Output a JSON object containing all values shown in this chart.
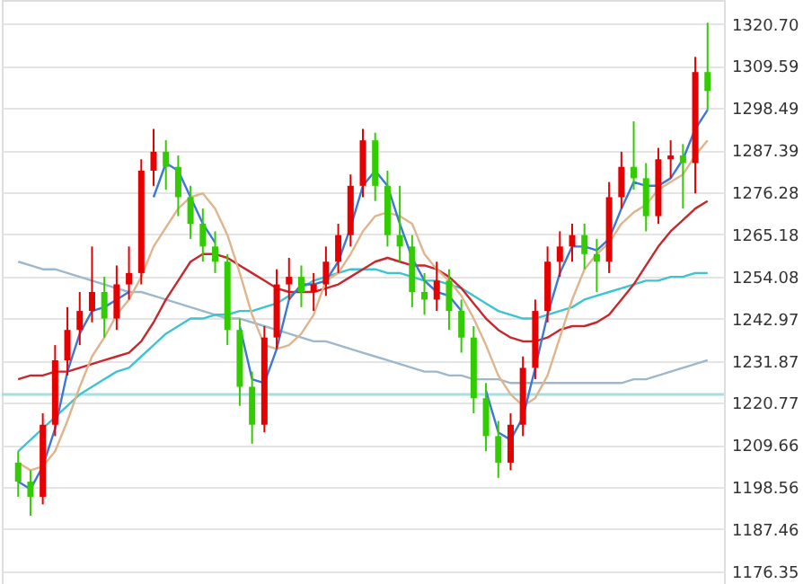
{
  "chart_data": {
    "type": "candlestick",
    "categories": [
      null,
      null,
      null,
      null,
      null,
      null,
      null,
      null,
      null,
      null,
      null,
      null,
      null,
      null,
      null,
      null,
      null,
      null,
      null,
      null,
      null,
      null,
      null,
      null,
      null,
      null,
      null,
      null,
      null,
      null,
      null,
      null,
      null,
      null,
      null,
      null,
      null,
      null,
      null,
      null,
      null,
      null,
      null,
      null,
      null,
      null,
      null,
      null,
      null,
      null,
      null,
      null,
      null,
      null,
      null,
      null,
      null
    ],
    "series": [
      {
        "type": "line",
        "color": "#9db8cc",
        "values": [
          1258,
          1257,
          1256,
          1256,
          1255,
          1254,
          1253,
          1252,
          1251,
          1250,
          1250,
          1249,
          1248,
          1247,
          1246,
          1245,
          1244,
          1243,
          1243,
          1242,
          1241,
          1240,
          1239,
          1238,
          1237,
          1237,
          1236,
          1235,
          1234,
          1233,
          1232,
          1231,
          1230,
          1229,
          1229,
          1228,
          1228,
          1227,
          1227,
          1227,
          1226,
          1226,
          1226,
          1226,
          1226,
          1226,
          1226,
          1226,
          1226,
          1226,
          1227,
          1227,
          1228,
          1229,
          1230,
          1231,
          1232
        ]
      },
      {
        "type": "line",
        "color": "#3cc4d0",
        "values": [
          1208,
          1211,
          1214,
          1217,
          1220,
          1223,
          1225,
          1227,
          1229,
          1230,
          1233,
          1236,
          1239,
          1241,
          1243,
          1243,
          1244,
          1244,
          1245,
          1245,
          1246,
          1247,
          1249,
          1251,
          1253,
          1254,
          1255,
          1256,
          1256,
          1256,
          1255,
          1255,
          1254,
          1253,
          1253,
          1252,
          1251,
          1249,
          1247,
          1245,
          1244,
          1243,
          1243,
          1244,
          1245,
          1246,
          1248,
          1249,
          1250,
          1251,
          1252,
          1253,
          1253,
          1254,
          1254,
          1255,
          1255
        ]
      },
      {
        "type": "line",
        "color": "#c8282d",
        "values": [
          1227,
          1228,
          1228,
          1229,
          1229,
          1230,
          1231,
          1232,
          1233,
          1234,
          1237,
          1242,
          1248,
          1253,
          1258,
          1260,
          1260,
          1259,
          1257,
          1255,
          1253,
          1251,
          1250,
          1250,
          1250,
          1251,
          1252,
          1254,
          1256,
          1258,
          1259,
          1258,
          1257,
          1257,
          1256,
          1254,
          1251,
          1247,
          1243,
          1240,
          1238,
          1237,
          1237,
          1238,
          1240,
          1241,
          1241,
          1242,
          1244,
          1248,
          1252,
          1257,
          1262,
          1266,
          1269,
          1272,
          1274
        ]
      },
      {
        "type": "line",
        "color": "#e0b48c",
        "values": [
          1205,
          1203,
          1204,
          1208,
          1216,
          1225,
          1233,
          1238,
          1244,
          1248,
          1254,
          1262,
          1267,
          1272,
          1275,
          1276,
          1272,
          1265,
          1255,
          1244,
          1236,
          1235,
          1236,
          1239,
          1244,
          1253,
          1255,
          1260,
          1266,
          1270,
          1271,
          1270,
          1268,
          1260,
          1256,
          1253,
          1249,
          1243,
          1236,
          1228,
          1223,
          1220,
          1222,
          1228,
          1238,
          1248,
          1256,
          1260,
          1263,
          1268,
          1271,
          1273,
          1277,
          1279,
          1281,
          1286,
          1290
        ]
      },
      {
        "type": "line",
        "color": "#3c78d8",
        "values": [
          1200,
          1198,
          1204,
          1214,
          1229,
          1239,
          1245,
          1246,
          1248,
          1250,
          null,
          1275,
          1284,
          1282,
          1275,
          1268,
          1263,
          null,
          1241,
          1227,
          1226,
          1235,
          1248,
          1252,
          1252,
          1253,
          1258,
          1267,
          1278,
          1282,
          1278,
          1268,
          1259,
          1253,
          1250,
          1249,
          1245,
          null,
          1224,
          1213,
          1211,
          1217,
          1230,
          1244,
          1255,
          1262,
          1262,
          1261,
          1264,
          1272,
          1279,
          1278,
          1278,
          1280,
          1285,
          1293,
          1298
        ]
      },
      {
        "ohlc": [
          [
            1205,
            1208,
            1196,
            1200
          ],
          [
            1200,
            1203,
            1191,
            1196
          ],
          [
            1196,
            1218,
            1194,
            1215
          ],
          [
            1215,
            1236,
            1212,
            1232
          ],
          [
            1232,
            1246,
            1228,
            1240
          ],
          [
            1240,
            1250,
            1236,
            1245
          ],
          [
            1245,
            1262,
            1242,
            1250
          ],
          [
            1250,
            1254,
            1238,
            1243
          ],
          [
            1243,
            1257,
            1240,
            1252
          ],
          [
            1252,
            1262,
            1248,
            1255
          ],
          [
            1255,
            1285,
            1252,
            1282
          ],
          [
            1282,
            1293,
            1278,
            1287
          ],
          [
            1287,
            1290,
            1277,
            1283
          ],
          [
            1283,
            1286,
            1270,
            1275
          ],
          [
            1275,
            1278,
            1264,
            1268
          ],
          [
            1268,
            1272,
            1258,
            1262
          ],
          [
            1262,
            1266,
            1255,
            1258
          ],
          [
            1258,
            1260,
            1236,
            1240
          ],
          [
            1240,
            1243,
            1220,
            1225
          ],
          [
            1225,
            1229,
            1210,
            1215
          ],
          [
            1215,
            1241,
            1213,
            1238
          ],
          [
            1238,
            1256,
            1235,
            1252
          ],
          [
            1252,
            1259,
            1248,
            1254
          ],
          [
            1254,
            1257,
            1246,
            1250
          ],
          [
            1250,
            1255,
            1245,
            1252
          ],
          [
            1252,
            1262,
            1249,
            1258
          ],
          [
            1258,
            1268,
            1255,
            1265
          ],
          [
            1265,
            1281,
            1262,
            1278
          ],
          [
            1278,
            1293,
            1275,
            1290
          ],
          [
            1290,
            1292,
            1274,
            1278
          ],
          [
            1278,
            1282,
            1262,
            1265
          ],
          [
            1265,
            1278,
            1258,
            1262
          ],
          [
            1262,
            1265,
            1246,
            1250
          ],
          [
            1250,
            1255,
            1244,
            1248
          ],
          [
            1248,
            1258,
            1245,
            1253
          ],
          [
            1253,
            1256,
            1240,
            1245
          ],
          [
            1245,
            1248,
            1234,
            1238
          ],
          [
            1238,
            1241,
            1218,
            1222
          ],
          [
            1222,
            1226,
            1208,
            1212
          ],
          [
            1212,
            1216,
            1201,
            1205
          ],
          [
            1205,
            1218,
            1203,
            1215
          ],
          [
            1215,
            1233,
            1212,
            1230
          ],
          [
            1230,
            1248,
            1227,
            1245
          ],
          [
            1245,
            1262,
            1242,
            1258
          ],
          [
            1258,
            1266,
            1254,
            1262
          ],
          [
            1262,
            1268,
            1258,
            1265
          ],
          [
            1265,
            1268,
            1256,
            1260
          ],
          [
            1260,
            1264,
            1250,
            1258
          ],
          [
            1258,
            1279,
            1255,
            1275
          ],
          [
            1275,
            1287,
            1272,
            1283
          ],
          [
            1283,
            1295,
            1277,
            1280
          ],
          [
            1280,
            1284,
            1266,
            1270
          ],
          [
            1270,
            1288,
            1268,
            1285
          ],
          [
            1285,
            1290,
            1280,
            1286
          ],
          [
            1286,
            1289,
            1272,
            1284
          ],
          [
            1284,
            1312,
            1276,
            1308
          ],
          [
            1308,
            1321,
            1298,
            1303
          ]
        ],
        "colors": [
          "#33cc00",
          "#33cc00",
          "#e60000",
          "#e60000",
          "#e60000",
          "#e60000",
          "#e60000",
          "#33cc00",
          "#e60000",
          "#e60000",
          "#e60000",
          "#e60000",
          "#33cc00",
          "#33cc00",
          "#33cc00",
          "#33cc00",
          "#33cc00",
          "#33cc00",
          "#33cc00",
          "#33cc00",
          "#e60000",
          "#e60000",
          "#e60000",
          "#33cc00",
          "#e60000",
          "#e60000",
          "#e60000",
          "#e60000",
          "#e60000",
          "#33cc00",
          "#33cc00",
          "#33cc00",
          "#33cc00",
          "#33cc00",
          "#e60000",
          "#33cc00",
          "#33cc00",
          "#33cc00",
          "#33cc00",
          "#33cc00",
          "#e60000",
          "#e60000",
          "#e60000",
          "#e60000",
          "#e60000",
          "#e60000",
          "#33cc00",
          "#33cc00",
          "#e60000",
          "#e60000",
          "#33cc00",
          "#33cc00",
          "#e60000",
          "#e60000",
          "#33cc00",
          "#e60000",
          "#33cc00"
        ]
      }
    ],
    "ylim": [
      1173,
      1327
    ],
    "yticks": [
      {
        "value": 1176.35,
        "label": "1176.35"
      },
      {
        "value": 1187.46,
        "label": "1187.46"
      },
      {
        "value": 1198.56,
        "label": "1198.56"
      },
      {
        "value": 1209.66,
        "label": "1209.66"
      },
      {
        "value": 1220.77,
        "label": "1220.77"
      },
      {
        "value": 1231.87,
        "label": "1231.87"
      },
      {
        "value": 1242.97,
        "label": "1242.97"
      },
      {
        "value": 1254.08,
        "label": "1254.08"
      },
      {
        "value": 1265.18,
        "label": "1265.18"
      },
      {
        "value": 1276.28,
        "label": "1276.28"
      },
      {
        "value": 1287.39,
        "label": "1287.39"
      },
      {
        "value": 1298.49,
        "label": "1298.49"
      },
      {
        "value": 1309.59,
        "label": "1309.59"
      },
      {
        "value": 1320.7,
        "label": "1320.70"
      }
    ],
    "ref_lines": [
      {
        "axis": "y",
        "value": 1223,
        "color": "#a8dede"
      }
    ],
    "grid": "y"
  }
}
